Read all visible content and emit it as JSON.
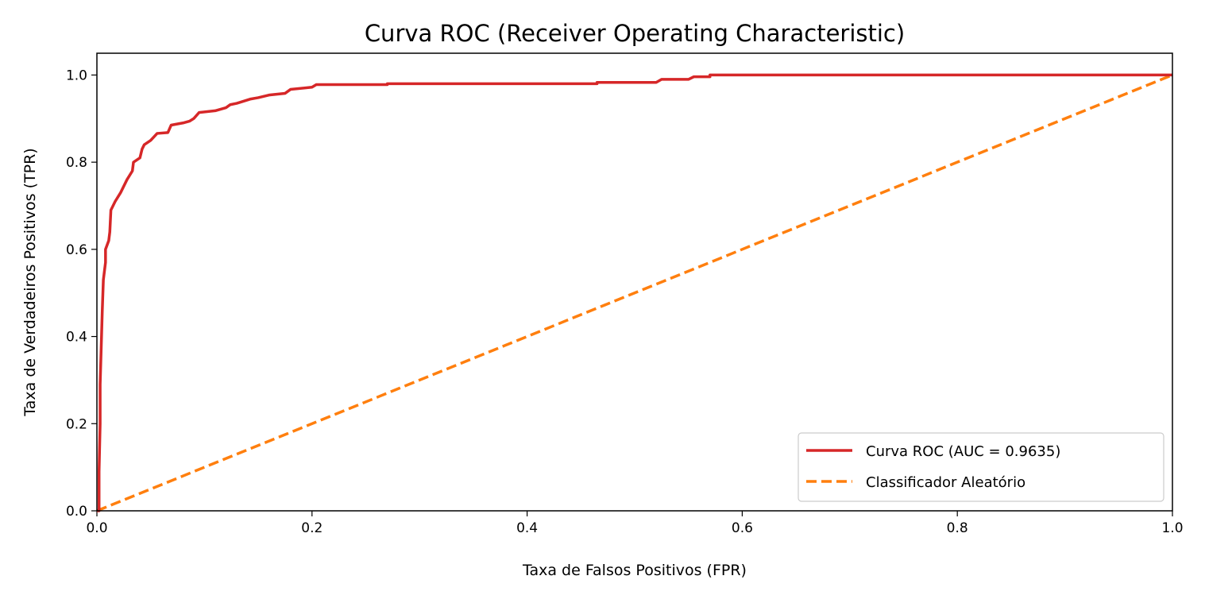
{
  "chart_data": {
    "type": "line",
    "title": "Curva ROC (Receiver Operating Characteristic)",
    "xlabel": "Taxa de Falsos Positivos (FPR)",
    "ylabel": "Taxa de Verdadeiros Positivos (TPR)",
    "xlim": [
      0,
      1.0
    ],
    "ylim": [
      0,
      1.05
    ],
    "xticks": [
      "0.0",
      "0.2",
      "0.4",
      "0.6",
      "0.8",
      "1.0"
    ],
    "yticks": [
      "0.0",
      "0.2",
      "0.4",
      "0.6",
      "0.8",
      "1.0"
    ],
    "grid": false,
    "legend_position": "lower-right",
    "series": [
      {
        "name": "Curva ROC (AUC = 0.9635)",
        "color": "#d62728",
        "style": "solid",
        "x": [
          0,
          0.002,
          0.002,
          0.003,
          0.003,
          0.005,
          0.006,
          0.008,
          0.008,
          0.011,
          0.012,
          0.013,
          0.017,
          0.022,
          0.028,
          0.033,
          0.034,
          0.04,
          0.042,
          0.044,
          0.05,
          0.056,
          0.066,
          0.069,
          0.08,
          0.086,
          0.09,
          0.095,
          0.11,
          0.12,
          0.124,
          0.13,
          0.143,
          0.15,
          0.16,
          0.175,
          0.18,
          0.2,
          0.204,
          0.27,
          0.27,
          0.465,
          0.465,
          0.52,
          0.525,
          0.55,
          0.555,
          0.57,
          0.57,
          1.0
        ],
        "y": [
          0,
          0,
          0.09,
          0.2,
          0.29,
          0.46,
          0.53,
          0.57,
          0.6,
          0.62,
          0.64,
          0.69,
          0.71,
          0.73,
          0.76,
          0.78,
          0.8,
          0.81,
          0.83,
          0.84,
          0.85,
          0.866,
          0.868,
          0.885,
          0.89,
          0.894,
          0.9,
          0.914,
          0.918,
          0.925,
          0.932,
          0.935,
          0.945,
          0.948,
          0.954,
          0.958,
          0.967,
          0.972,
          0.978,
          0.978,
          0.98,
          0.98,
          0.983,
          0.983,
          0.99,
          0.99,
          0.996,
          0.996,
          1.0,
          1.0
        ]
      },
      {
        "name": "Classificador Aleatório",
        "color": "#ff7f0e",
        "style": "dashed",
        "x": [
          0,
          1
        ],
        "y": [
          0,
          1
        ]
      }
    ]
  }
}
